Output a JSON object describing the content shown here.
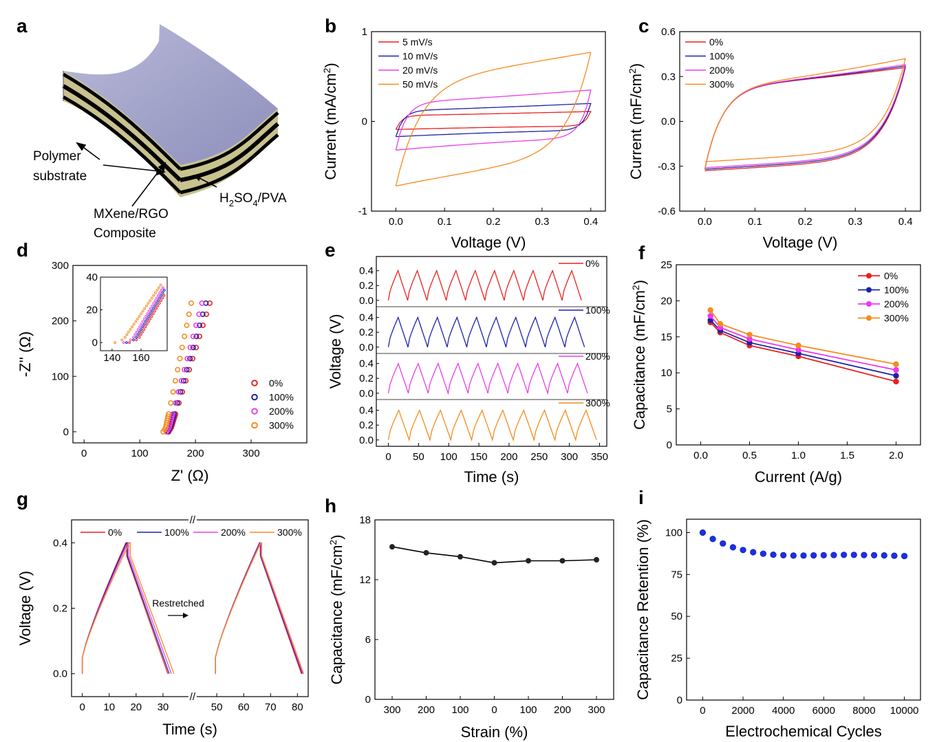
{
  "panel_labels": {
    "a": "a",
    "b": "b",
    "c": "c",
    "d": "d",
    "e": "e",
    "f": "f",
    "g": "g",
    "h": "h",
    "i": "i"
  },
  "panel_a": {
    "labels": {
      "polymer_1": "Polymer",
      "polymer_2": "substrate",
      "mxene_1": "MXene/RGO",
      "mxene_2": "Composite",
      "electrolyte_h": "H",
      "electrolyte_2": "2",
      "electrolyte_so": "SO",
      "electrolyte_4": "4",
      "electrolyte_pva": "/PVA"
    },
    "colors": {
      "top": "#a7a8cc",
      "black": "#000000",
      "tan": "#c9c18e"
    }
  },
  "chart_data": [
    {
      "id": "b",
      "type": "line",
      "xlabel": "Voltage (V)",
      "ylabel": "Current (mA/cm2)",
      "xlim": [
        -0.05,
        0.43
      ],
      "ylim": [
        -1,
        1
      ],
      "xticks": [
        "0.0",
        "0.1",
        "0.2",
        "0.3",
        "0.4"
      ],
      "yticks": [
        "-1",
        "0",
        "1"
      ],
      "legend_position": "top-left",
      "series": [
        {
          "name": "5 mV/s",
          "color": "#e8211f",
          "upper": 0.11,
          "lower": -0.09
        },
        {
          "name": "10 mV/s",
          "color": "#1b22a8",
          "upper": 0.2,
          "lower": -0.17
        },
        {
          "name": "20 mV/s",
          "color": "#e83ee8",
          "upper": 0.35,
          "lower": -0.32
        },
        {
          "name": "50 mV/s",
          "color": "#f58b1f",
          "upper": 0.77,
          "lower": -0.72
        }
      ]
    },
    {
      "id": "c",
      "type": "line",
      "xlabel": "Voltage (V)",
      "ylabel": "Current (mF/cm2)",
      "xlim": [
        -0.05,
        0.43
      ],
      "ylim": [
        -0.6,
        0.6
      ],
      "xticks": [
        "0.0",
        "0.1",
        "0.2",
        "0.3",
        "0.4"
      ],
      "yticks": [
        "-0.6",
        "-0.3",
        "0.0",
        "0.3",
        "0.6"
      ],
      "legend_position": "top-left",
      "series": [
        {
          "name": "0%",
          "color": "#e8211f",
          "upper": 0.36
        },
        {
          "name": "100%",
          "color": "#1b22a8",
          "upper": 0.37
        },
        {
          "name": "200%",
          "color": "#e83ee8",
          "upper": 0.38
        },
        {
          "name": "300%",
          "color": "#f58b1f",
          "upper": 0.42
        }
      ]
    },
    {
      "id": "d",
      "type": "scatter",
      "xlabel": "Z' (Ω)",
      "ylabel": "-Z'' (Ω)",
      "xlim": [
        -20,
        400
      ],
      "ylim": [
        -20,
        300
      ],
      "xticks": [
        "0",
        "100",
        "200",
        "300"
      ],
      "yticks": [
        "0",
        "100",
        "200",
        "300"
      ],
      "legend_position": "center-right",
      "series": [
        {
          "name": "0%",
          "color": "#e8211f",
          "x0": 152,
          "slope": 3.25,
          "ymax": 245
        },
        {
          "name": "100%",
          "color": "#1b22a8",
          "x0": 150,
          "slope": 3.5,
          "ymax": 238
        },
        {
          "name": "200%",
          "color": "#e83ee8",
          "x0": 148,
          "slope": 3.8,
          "ymax": 234
        },
        {
          "name": "300%",
          "color": "#f58b1f",
          "x0": 142,
          "slope": 4.9,
          "ymax": 234
        }
      ],
      "inset": {
        "xlim": [
          132,
          178
        ],
        "ylim": [
          -5,
          40
        ],
        "xticks": [
          "140",
          "160"
        ],
        "yticks": [
          "0",
          "20",
          "40"
        ]
      }
    },
    {
      "id": "e",
      "type": "line",
      "xlabel": "Time (s)",
      "ylabel": "Voltage (V)",
      "xlim": [
        -20,
        362
      ],
      "ylim": [
        -0.03,
        0.48
      ],
      "xticks": [
        "0",
        "50",
        "100",
        "150",
        "200",
        "250",
        "300",
        "350"
      ],
      "yticks": [
        "0.0",
        "0.2",
        "0.4"
      ],
      "subticks": [
        "0.0",
        "0.2",
        "0.4"
      ],
      "cycles": 10,
      "series": [
        {
          "name": "0%",
          "color": "#e8211f",
          "period": 32,
          "peak": 0.4
        },
        {
          "name": "100%",
          "color": "#1b22a8",
          "period": 32.5,
          "peak": 0.4
        },
        {
          "name": "200%",
          "color": "#e83ee8",
          "period": 33,
          "peak": 0.4
        },
        {
          "name": "300%",
          "color": "#f58b1f",
          "period": 34.5,
          "peak": 0.4
        }
      ]
    },
    {
      "id": "f",
      "type": "line",
      "xlabel": "Current (A/g)",
      "ylabel": "Capacitance (mF/cm2)",
      "xlim": [
        -0.25,
        2.25
      ],
      "ylim": [
        0,
        25
      ],
      "xticks": [
        "0.0",
        "0.5",
        "1.0",
        "1.5",
        "2.0"
      ],
      "yticks": [
        "0",
        "5",
        "10",
        "15",
        "20",
        "25"
      ],
      "legend_position": "top-right",
      "x": [
        0.1,
        0.2,
        0.5,
        1.0,
        2.0
      ],
      "series": [
        {
          "name": "0%",
          "color": "#e8211f",
          "values": [
            17.0,
            15.6,
            13.8,
            12.3,
            8.8
          ]
        },
        {
          "name": "100%",
          "color": "#1b22a8",
          "values": [
            17.3,
            15.9,
            14.2,
            12.7,
            9.6
          ]
        },
        {
          "name": "200%",
          "color": "#f036f0",
          "values": [
            17.9,
            16.3,
            14.7,
            13.2,
            10.4
          ]
        },
        {
          "name": "300%",
          "color": "#f58b1f",
          "values": [
            18.7,
            16.8,
            15.3,
            13.8,
            11.2
          ]
        }
      ]
    },
    {
      "id": "g",
      "type": "line",
      "xlabel": "Time (s)",
      "ylabel": "Voltage (V)",
      "xlim": [
        -4,
        84
      ],
      "ylim": [
        -0.07,
        0.47
      ],
      "xticks": [
        "0",
        "10",
        "20",
        "30",
        "50",
        "60",
        "70",
        "80"
      ],
      "yticks": [
        "0.0",
        "0.2",
        "0.4"
      ],
      "axis_break": "//",
      "annotation": "Restretched",
      "legend_position": "top",
      "series": [
        {
          "name": "0%",
          "color": "#e8211f",
          "peak_t": 16.2,
          "end_t": 31.8,
          "peak2_t": 65.9,
          "end2_t": 81.5
        },
        {
          "name": "100%",
          "color": "#1b22a8",
          "peak_t": 16.5,
          "end_t": 32.3,
          "peak2_t": 66.0,
          "end2_t": 81.8
        },
        {
          "name": "200%",
          "color": "#e83ee8",
          "peak_t": 17.0,
          "end_t": 33.1,
          "peak2_t": 66.2,
          "end2_t": 82.0
        },
        {
          "name": "300%",
          "color": "#f58b1f",
          "peak_t": 17.6,
          "end_t": 34.1,
          "peak2_t": 66.4,
          "end2_t": 82.3
        }
      ]
    },
    {
      "id": "h",
      "type": "line",
      "xlabel": "Strain (%)",
      "ylabel": "Capacitance (mF/cm2)",
      "ylim": [
        0,
        18
      ],
      "categories": [
        "300",
        "200",
        "100",
        "0",
        "100",
        "200",
        "300"
      ],
      "yticks": [
        "0",
        "6",
        "12",
        "18"
      ],
      "values": [
        15.3,
        14.7,
        14.3,
        13.7,
        13.9,
        13.9,
        14.0
      ],
      "color": "#000000"
    },
    {
      "id": "i",
      "type": "scatter",
      "xlabel": "Electrochemical Cycles",
      "ylabel": "Capacitance Retention (%)",
      "xlim": [
        -800,
        10800
      ],
      "ylim": [
        0,
        108
      ],
      "xticks": [
        "0",
        "2000",
        "4000",
        "6000",
        "8000",
        "10000"
      ],
      "yticks": [
        "0",
        "25",
        "50",
        "75",
        "100"
      ],
      "x": [
        0,
        500,
        1000,
        1500,
        2000,
        2500,
        3000,
        3500,
        4000,
        4500,
        5000,
        5500,
        6000,
        6500,
        7000,
        7500,
        8000,
        8500,
        9000,
        9500,
        10000
      ],
      "values": [
        100,
        96.2,
        93.5,
        91.2,
        89.6,
        88.3,
        87.4,
        86.8,
        86.5,
        86.3,
        86.3,
        86.4,
        86.5,
        86.6,
        86.7,
        86.7,
        86.6,
        86.5,
        86.4,
        86.2,
        86.0
      ],
      "color": "#1a2fe8"
    }
  ]
}
